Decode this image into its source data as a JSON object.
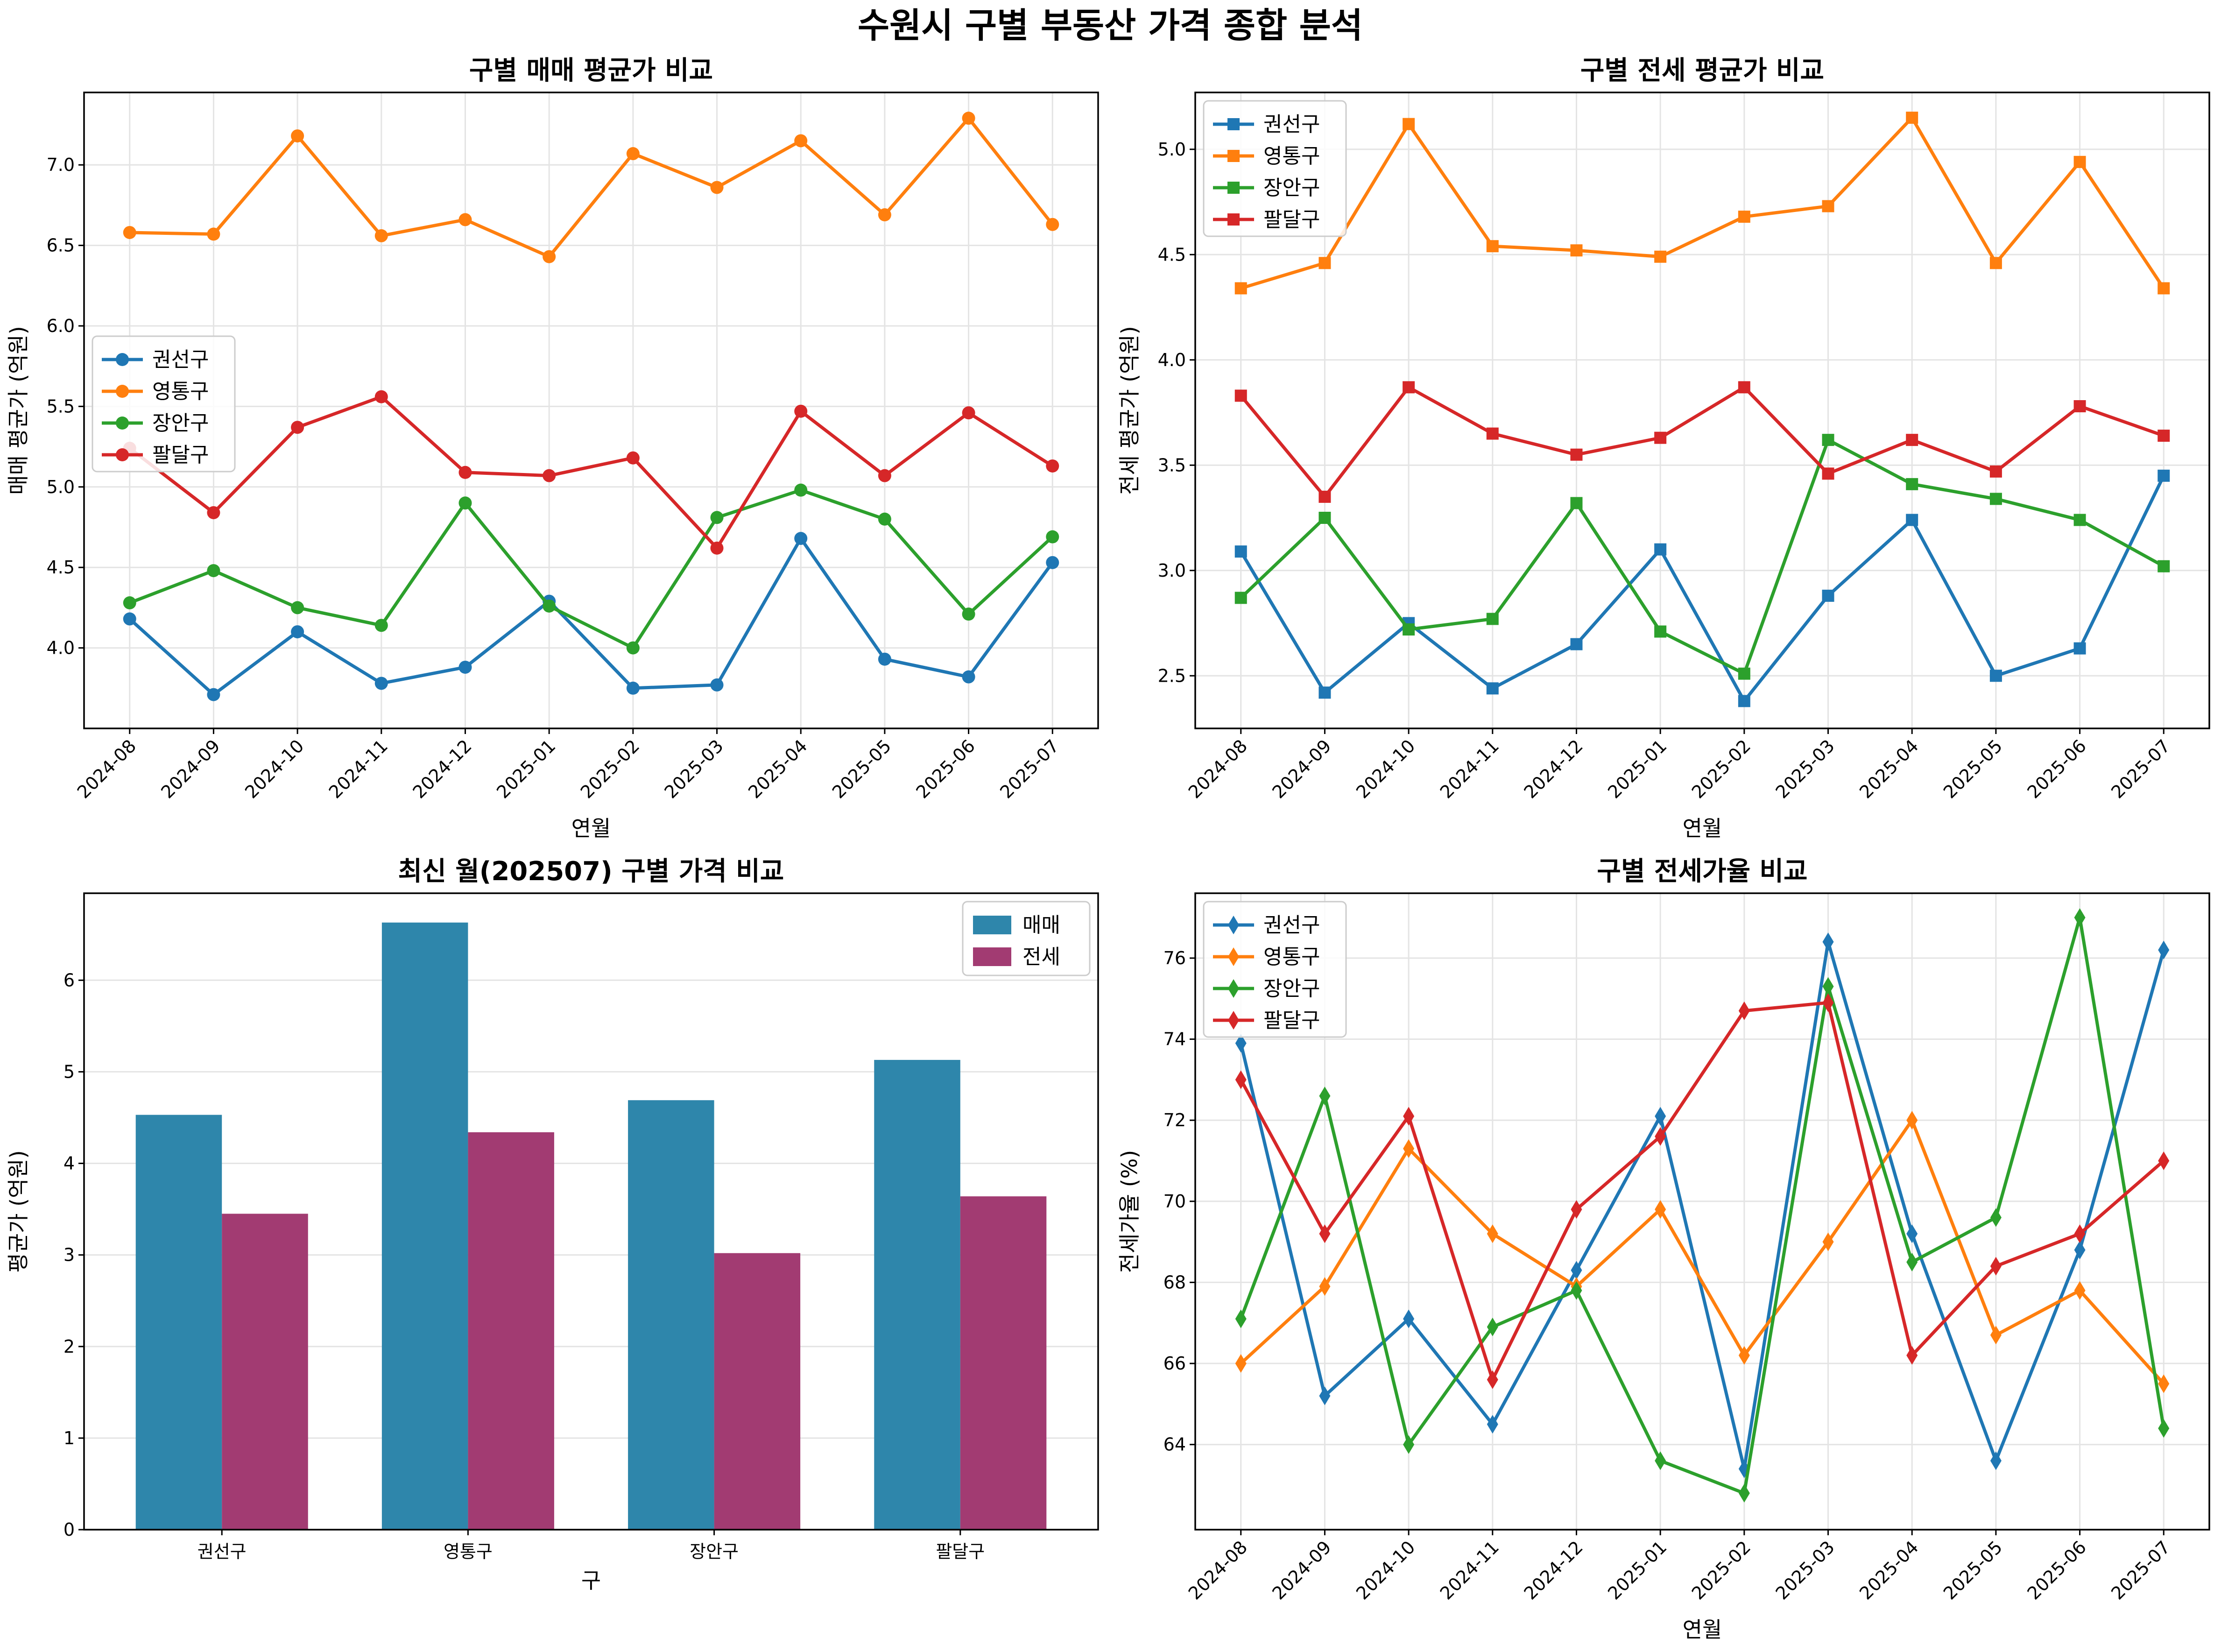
{
  "title": "수원시 구별 부동산 가격 종합 분석",
  "colors": {
    "권선구": "#1f77b4",
    "영통구": "#ff7f0e",
    "장안구": "#2ca02c",
    "팔달구": "#d62728",
    "매매": "#2e86ab",
    "전세": "#a23b72"
  },
  "chart_data": [
    {
      "type": "line",
      "title": "구별 매매 평균가 비교",
      "xlabel": "연월",
      "ylabel": "매매 평균가 (억원)",
      "marker": "circle",
      "legend_position": "center-left",
      "grid": true,
      "ylim": [
        3.5,
        7.45
      ],
      "yticks": [
        "4.0",
        "4.5",
        "5.0",
        "5.5",
        "6.0",
        "6.5",
        "7.0"
      ],
      "x": [
        "2024-08",
        "2024-09",
        "2024-10",
        "2024-11",
        "2024-12",
        "2025-01",
        "2025-02",
        "2025-03",
        "2025-04",
        "2025-05",
        "2025-06",
        "2025-07"
      ],
      "series": [
        {
          "name": "권선구",
          "values": [
            4.18,
            3.71,
            4.1,
            3.78,
            3.88,
            4.29,
            3.75,
            3.77,
            4.68,
            3.93,
            3.82,
            4.53
          ]
        },
        {
          "name": "영통구",
          "values": [
            6.58,
            6.57,
            7.18,
            6.56,
            6.66,
            6.43,
            7.07,
            6.86,
            7.15,
            6.69,
            7.29,
            6.63
          ]
        },
        {
          "name": "장안구",
          "values": [
            4.28,
            4.48,
            4.25,
            4.14,
            4.9,
            4.26,
            4.0,
            4.81,
            4.98,
            4.8,
            4.21,
            4.69
          ]
        },
        {
          "name": "팔달구",
          "values": [
            5.24,
            4.84,
            5.37,
            5.56,
            5.09,
            5.07,
            5.18,
            4.62,
            5.47,
            5.07,
            5.46,
            5.13
          ]
        }
      ]
    },
    {
      "type": "line",
      "title": "구별 전세 평균가 비교",
      "xlabel": "연월",
      "ylabel": "전세 평균가 (억원)",
      "marker": "square",
      "legend_position": "top-left",
      "grid": true,
      "ylim": [
        2.25,
        5.27
      ],
      "yticks": [
        "2.5",
        "3.0",
        "3.5",
        "4.0",
        "4.5",
        "5.0"
      ],
      "x": [
        "2024-08",
        "2024-09",
        "2024-10",
        "2024-11",
        "2024-12",
        "2025-01",
        "2025-02",
        "2025-03",
        "2025-04",
        "2025-05",
        "2025-06",
        "2025-07"
      ],
      "series": [
        {
          "name": "권선구",
          "values": [
            3.09,
            2.42,
            2.75,
            2.44,
            2.65,
            3.1,
            2.38,
            2.88,
            3.24,
            2.5,
            2.63,
            3.45
          ]
        },
        {
          "name": "영통구",
          "values": [
            4.34,
            4.46,
            5.12,
            4.54,
            4.52,
            4.49,
            4.68,
            4.73,
            5.15,
            4.46,
            4.94,
            4.34
          ]
        },
        {
          "name": "장안구",
          "values": [
            2.87,
            3.25,
            2.72,
            2.77,
            3.32,
            2.71,
            2.51,
            3.62,
            3.41,
            3.34,
            3.24,
            3.02
          ]
        },
        {
          "name": "팔달구",
          "values": [
            3.83,
            3.35,
            3.87,
            3.65,
            3.55,
            3.63,
            3.87,
            3.46,
            3.62,
            3.47,
            3.78,
            3.64
          ]
        }
      ]
    },
    {
      "type": "bar",
      "title": "최신 월(202507) 구별 가격 비교",
      "xlabel": "구",
      "ylabel": "평균가 (억원)",
      "legend_position": "top-right",
      "grid": true,
      "ylim": [
        0,
        6.95
      ],
      "yticks": [
        "0",
        "1",
        "2",
        "3",
        "4",
        "5",
        "6"
      ],
      "categories": [
        "권선구",
        "영통구",
        "장안구",
        "팔달구"
      ],
      "series": [
        {
          "name": "매매",
          "values": [
            4.53,
            6.63,
            4.69,
            5.13
          ]
        },
        {
          "name": "전세",
          "values": [
            3.45,
            4.34,
            3.02,
            3.64
          ]
        }
      ]
    },
    {
      "type": "line",
      "title": "구별 전세가율 비교",
      "xlabel": "연월",
      "ylabel": "전세가율 (%)",
      "marker": "diamond",
      "legend_position": "top-left",
      "grid": true,
      "ylim": [
        61.9,
        77.6
      ],
      "yticks": [
        "64",
        "66",
        "68",
        "70",
        "72",
        "74",
        "76"
      ],
      "x": [
        "2024-08",
        "2024-09",
        "2024-10",
        "2024-11",
        "2024-12",
        "2025-01",
        "2025-02",
        "2025-03",
        "2025-04",
        "2025-05",
        "2025-06",
        "2025-07"
      ],
      "series": [
        {
          "name": "권선구",
          "values": [
            73.9,
            65.2,
            67.1,
            64.5,
            68.3,
            72.1,
            63.4,
            76.4,
            69.2,
            63.6,
            68.8,
            76.2
          ]
        },
        {
          "name": "영통구",
          "values": [
            66.0,
            67.9,
            71.3,
            69.2,
            67.9,
            69.8,
            66.2,
            69.0,
            72.0,
            66.7,
            67.8,
            65.5
          ]
        },
        {
          "name": "장안구",
          "values": [
            67.1,
            72.6,
            64.0,
            66.9,
            67.8,
            63.6,
            62.8,
            75.3,
            68.5,
            69.6,
            77.0,
            64.4
          ]
        },
        {
          "name": "팔달구",
          "values": [
            73.0,
            69.2,
            72.1,
            65.6,
            69.8,
            71.6,
            74.7,
            74.9,
            66.2,
            68.4,
            69.2,
            71.0
          ]
        }
      ]
    }
  ]
}
